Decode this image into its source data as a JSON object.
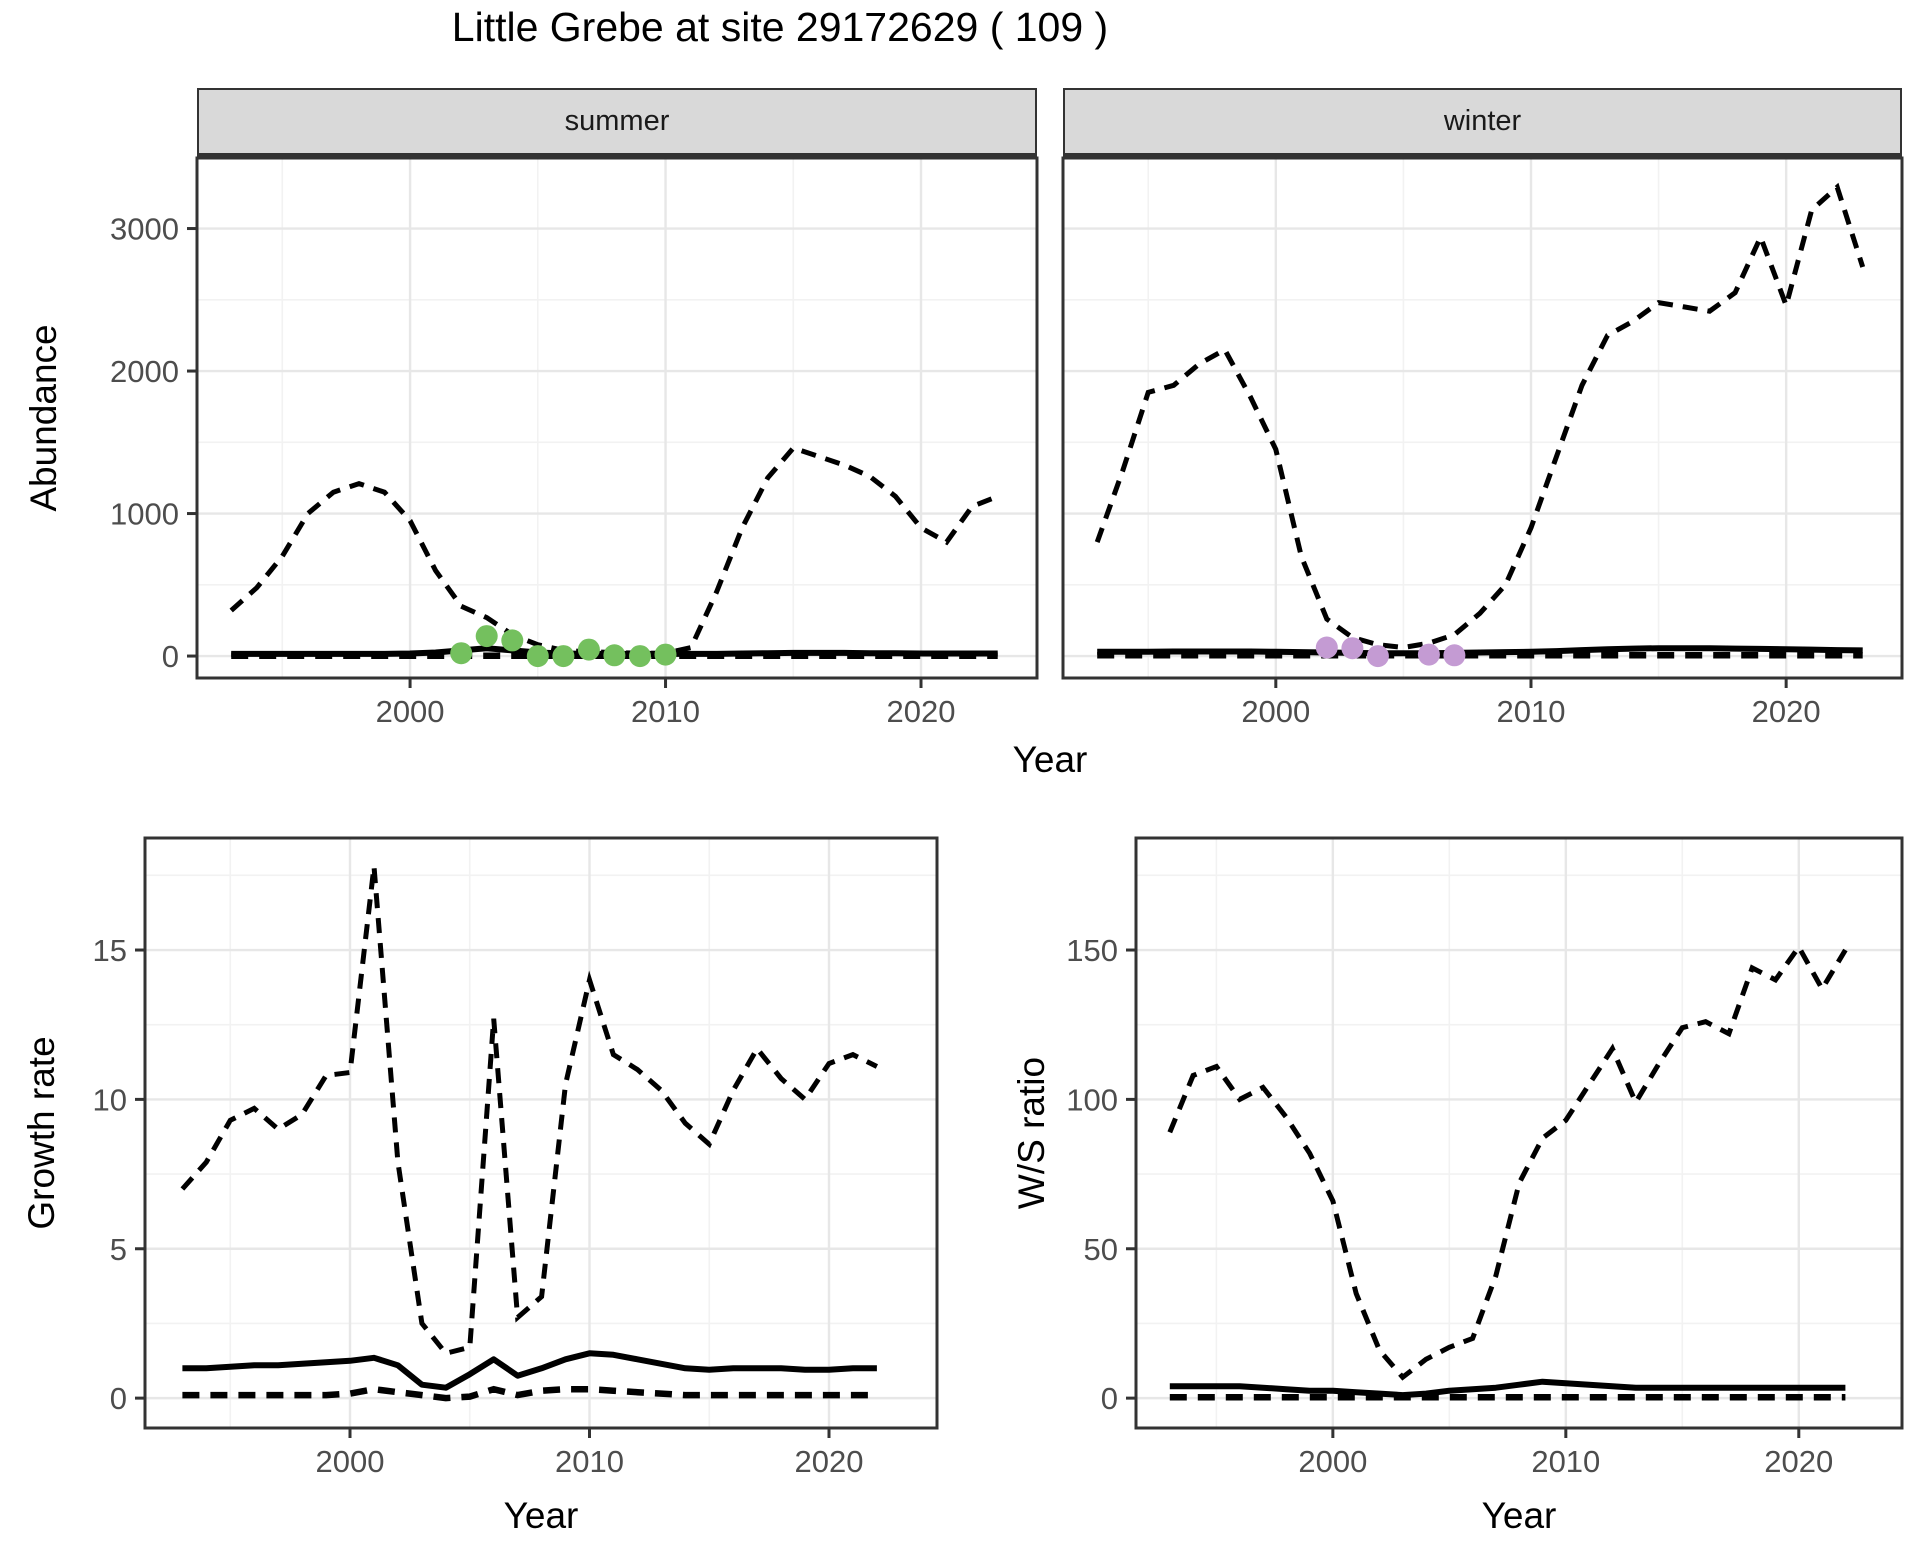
{
  "title": "Little Grebe at site 29172629 ( 109 )",
  "axis_titles": {
    "abundance": "Abundance",
    "year": "Year",
    "growth_rate": "Growth rate",
    "ws_ratio": "W/S ratio"
  },
  "colors": {
    "line": "#000000",
    "summer_points": "#74c05e",
    "winter_points": "#c49bd3",
    "strip_bg": "#d9d9d9",
    "grid_major": "#e7e7e7",
    "grid_minor": "#f2f2f2",
    "tick_label": "#4d4d4d",
    "panel_border": "#333333"
  },
  "chart_data": [
    {
      "id": "summer",
      "type": "line",
      "facet_label": "summer",
      "ylabel": "Abundance",
      "xlabel": "Year",
      "xlim": [
        1991.66,
        2024.54
      ],
      "ylim": [
        -154,
        3495
      ],
      "x_ticks": [
        2000,
        2010,
        2020
      ],
      "x_minor": [
        1995,
        2005,
        2015
      ],
      "y_ticks": [
        0,
        1000,
        2000,
        3000
      ],
      "y_minor": [
        500,
        1500,
        2500
      ],
      "show_y_labels": true,
      "grid": true,
      "legend": "none",
      "years": [
        1993,
        1994,
        1995,
        1996,
        1997,
        1998,
        1999,
        2000,
        2001,
        2002,
        2003,
        2004,
        2005,
        2006,
        2007,
        2008,
        2009,
        2010,
        2011,
        2012,
        2013,
        2014,
        2015,
        2016,
        2017,
        2018,
        2019,
        2020,
        2021,
        2022,
        2023
      ],
      "series": [
        {
          "name": "upper_ci",
          "style": "upper",
          "values": [
            320,
            480,
            700,
            1000,
            1150,
            1210,
            1150,
            950,
            600,
            350,
            270,
            150,
            80,
            40,
            30,
            25,
            20,
            20,
            60,
            450,
            900,
            1250,
            1460,
            1400,
            1340,
            1260,
            1120,
            900,
            800,
            1050,
            1120
          ]
        },
        {
          "name": "fitted",
          "style": "fit",
          "values": [
            15,
            15,
            15,
            15,
            15,
            15,
            15,
            18,
            25,
            40,
            55,
            40,
            25,
            18,
            15,
            15,
            15,
            15,
            15,
            15,
            18,
            20,
            22,
            22,
            22,
            20,
            20,
            18,
            18,
            18,
            18
          ]
        },
        {
          "name": "lower_ci",
          "style": "lower",
          "values": [
            2,
            2,
            2,
            2,
            2,
            2,
            2,
            2,
            2,
            2,
            2,
            2,
            2,
            2,
            2,
            2,
            2,
            2,
            2,
            2,
            2,
            2,
            2,
            2,
            2,
            2,
            2,
            2,
            2,
            2,
            2
          ]
        }
      ],
      "points": {
        "name": "observed-counts",
        "color": "#74c05e",
        "radius": 11,
        "years": [
          2002,
          2003,
          2004,
          2005,
          2006,
          2007,
          2008,
          2009,
          2010
        ],
        "values": [
          20,
          140,
          110,
          0,
          0,
          45,
          5,
          0,
          10
        ]
      }
    },
    {
      "id": "winter",
      "type": "line",
      "facet_label": "winter",
      "ylabel": "Abundance",
      "xlabel": "Year",
      "xlim": [
        1991.66,
        2024.54
      ],
      "ylim": [
        -154,
        3495
      ],
      "x_ticks": [
        2000,
        2010,
        2020
      ],
      "x_minor": [
        1995,
        2005,
        2015
      ],
      "y_ticks": [
        0,
        1000,
        2000,
        3000
      ],
      "y_minor": [
        500,
        1500,
        2500
      ],
      "show_y_labels": false,
      "grid": true,
      "legend": "none",
      "years": [
        1993,
        1994,
        1995,
        1996,
        1997,
        1998,
        1999,
        2000,
        2001,
        2002,
        2003,
        2004,
        2005,
        2006,
        2007,
        2008,
        2009,
        2010,
        2011,
        2012,
        2013,
        2014,
        2015,
        2016,
        2017,
        2018,
        2019,
        2020,
        2021,
        2022,
        2023
      ],
      "series": [
        {
          "name": "upper_ci",
          "style": "upper",
          "values": [
            800,
            1300,
            1850,
            1900,
            2050,
            2150,
            1820,
            1450,
            700,
            260,
            130,
            80,
            60,
            90,
            150,
            300,
            500,
            900,
            1400,
            1900,
            2250,
            2350,
            2480,
            2450,
            2420,
            2550,
            2940,
            2460,
            3130,
            3290,
            2730
          ]
        },
        {
          "name": "fitted",
          "style": "fit",
          "values": [
            30,
            30,
            30,
            32,
            32,
            32,
            32,
            30,
            28,
            25,
            22,
            20,
            20,
            20,
            22,
            25,
            28,
            30,
            35,
            42,
            48,
            52,
            55,
            55,
            55,
            52,
            50,
            48,
            45,
            42,
            40
          ]
        },
        {
          "name": "lower_ci",
          "style": "lower",
          "values": [
            5,
            5,
            5,
            5,
            5,
            5,
            5,
            5,
            5,
            5,
            5,
            5,
            5,
            5,
            5,
            5,
            5,
            5,
            5,
            5,
            5,
            5,
            5,
            5,
            5,
            5,
            5,
            5,
            5,
            5,
            5
          ]
        }
      ],
      "points": {
        "name": "observed-counts",
        "color": "#c49bd3",
        "radius": 11,
        "years": [
          2002,
          2003,
          2004,
          2006,
          2007
        ],
        "values": [
          60,
          55,
          0,
          10,
          5
        ]
      }
    },
    {
      "id": "growth",
      "type": "line",
      "facet_label": "",
      "ylabel": "Growth rate",
      "xlabel": "Year",
      "xlim": [
        1991.44,
        2024.51
      ],
      "ylim": [
        -1.0,
        18.75
      ],
      "x_ticks": [
        2000,
        2010,
        2020
      ],
      "x_minor": [
        1995,
        2005,
        2015
      ],
      "y_ticks": [
        0,
        5,
        10,
        15
      ],
      "y_minor": [
        2.5,
        7.5,
        12.5,
        17.5
      ],
      "show_y_labels": true,
      "grid": true,
      "legend": "none",
      "years": [
        1993,
        1994,
        1995,
        1996,
        1997,
        1998,
        1999,
        2000,
        2001,
        2002,
        2003,
        2004,
        2005,
        2006,
        2007,
        2008,
        2009,
        2010,
        2011,
        2012,
        2013,
        2014,
        2015,
        2016,
        2017,
        2018,
        2019,
        2020,
        2021,
        2022
      ],
      "series": [
        {
          "name": "upper_ci",
          "style": "upper",
          "values": [
            7.0,
            7.9,
            9.3,
            9.7,
            9.0,
            9.5,
            10.8,
            10.9,
            17.8,
            7.9,
            2.5,
            1.5,
            1.7,
            12.7,
            2.7,
            3.4,
            10.5,
            14.0,
            11.5,
            11.0,
            10.3,
            9.2,
            8.5,
            10.3,
            11.7,
            10.7,
            10.0,
            11.2,
            11.5,
            11.1
          ]
        },
        {
          "name": "fitted",
          "style": "fit",
          "values": [
            1.0,
            1.0,
            1.05,
            1.1,
            1.1,
            1.15,
            1.2,
            1.25,
            1.35,
            1.1,
            0.45,
            0.35,
            0.8,
            1.3,
            0.75,
            1.0,
            1.3,
            1.5,
            1.45,
            1.3,
            1.15,
            1.0,
            0.95,
            1.0,
            1.0,
            1.0,
            0.95,
            0.95,
            1.0,
            1.0
          ]
        },
        {
          "name": "lower_ci",
          "style": "lower",
          "values": [
            0.1,
            0.1,
            0.1,
            0.1,
            0.1,
            0.1,
            0.1,
            0.15,
            0.3,
            0.2,
            0.1,
            0.0,
            0.05,
            0.3,
            0.1,
            0.25,
            0.3,
            0.3,
            0.25,
            0.2,
            0.15,
            0.1,
            0.1,
            0.1,
            0.1,
            0.1,
            0.1,
            0.1,
            0.1,
            0.1
          ]
        }
      ],
      "points": null
    },
    {
      "id": "ws",
      "type": "line",
      "facet_label": "",
      "ylabel": "W/S ratio",
      "xlabel": "Year",
      "xlim": [
        1991.55,
        2024.43
      ],
      "ylim": [
        -10.0,
        187.5
      ],
      "x_ticks": [
        2000,
        2010,
        2020
      ],
      "x_minor": [
        1995,
        2005,
        2015
      ],
      "y_ticks": [
        0,
        50,
        100,
        150
      ],
      "y_minor": [
        25,
        75,
        125,
        175
      ],
      "show_y_labels": true,
      "grid": true,
      "legend": "none",
      "years": [
        1993,
        1994,
        1995,
        1996,
        1997,
        1998,
        1999,
        2000,
        2001,
        2002,
        2003,
        2004,
        2005,
        2006,
        2007,
        2008,
        2009,
        2010,
        2011,
        2012,
        2013,
        2014,
        2015,
        2016,
        2017,
        2018,
        2019,
        2020,
        2021,
        2022
      ],
      "series": [
        {
          "name": "upper_ci",
          "style": "upper",
          "values": [
            89,
            108,
            111,
            100,
            104,
            94,
            82,
            66,
            35,
            16,
            7,
            13,
            17,
            20,
            41,
            72,
            87,
            93,
            105,
            117,
            99,
            112,
            124,
            126,
            122,
            144,
            140,
            151,
            137,
            150
          ]
        },
        {
          "name": "fitted",
          "style": "fit",
          "values": [
            4,
            4,
            4,
            4,
            3.5,
            3,
            2.5,
            2.5,
            2,
            1.5,
            1,
            1.5,
            2.5,
            3,
            3.5,
            4.5,
            5.5,
            5,
            4.5,
            4,
            3.5,
            3.5,
            3.5,
            3.5,
            3.5,
            3.5,
            3.5,
            3.5,
            3.5,
            3.5
          ]
        },
        {
          "name": "lower_ci",
          "style": "lower",
          "values": [
            0.3,
            0.3,
            0.3,
            0.3,
            0.3,
            0.3,
            0.3,
            0.3,
            0.3,
            0.3,
            0.3,
            0.3,
            0.3,
            0.3,
            0.3,
            0.3,
            0.3,
            0.3,
            0.3,
            0.3,
            0.3,
            0.3,
            0.3,
            0.3,
            0.3,
            0.3,
            0.3,
            0.3,
            0.3,
            0.3
          ]
        }
      ],
      "points": null
    }
  ]
}
